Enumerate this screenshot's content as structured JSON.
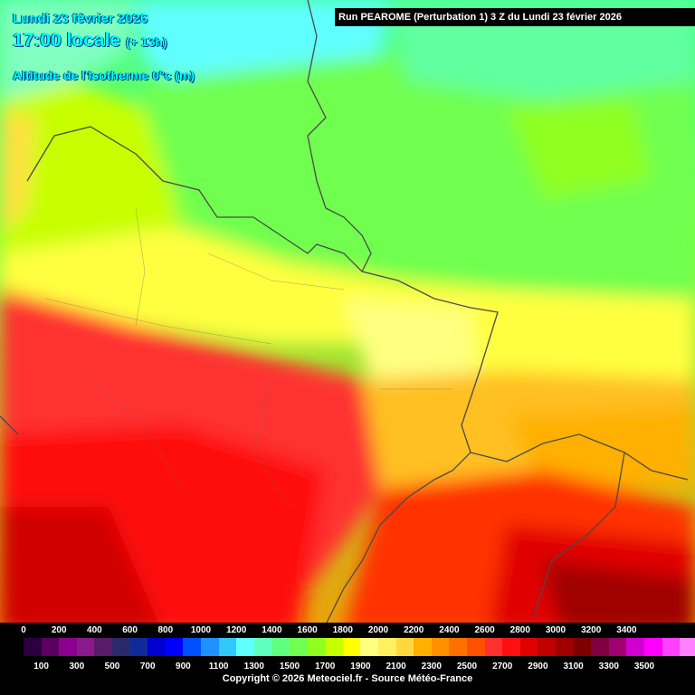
{
  "header": {
    "date": "Lundi 23 février 2026",
    "local_time": "17:00 locale",
    "offset": "(+ 13h)",
    "title": "Altitude de l'isotherme 0°c (m)",
    "run_info": "Run PEAROME (Perturbation 1) 3 Z du Lundi 23 février 2026"
  },
  "legend": {
    "top_labels": [
      "0",
      "200",
      "400",
      "600",
      "800",
      "1000",
      "1200",
      "1400",
      "1600",
      "1800",
      "2000",
      "2200",
      "2400",
      "2600",
      "2800",
      "3000",
      "3200",
      "3400"
    ],
    "bottom_labels": [
      "100",
      "300",
      "500",
      "700",
      "900",
      "1100",
      "1300",
      "1500",
      "1700",
      "1900",
      "2100",
      "2300",
      "2500",
      "2700",
      "2900",
      "3100",
      "3300",
      "3500"
    ],
    "colors": [
      "#2b0040",
      "#5a0060",
      "#8a0090",
      "#8a1a8a",
      "#5a1a6a",
      "#2a2a6a",
      "#102a9a",
      "#0000d0",
      "#0000ff",
      "#0050ff",
      "#1e90ff",
      "#30c8ff",
      "#60ffff",
      "#60ffc0",
      "#60ff80",
      "#70ff50",
      "#90ff20",
      "#c8ff00",
      "#ffff00",
      "#ffff80",
      "#fff060",
      "#ffd840",
      "#ffb000",
      "#ff9000",
      "#ff7000",
      "#ff5000",
      "#ff3030",
      "#ff1010",
      "#e00000",
      "#c00000",
      "#a00000",
      "#800000",
      "#800040",
      "#a00070",
      "#d000d0",
      "#ff00ff",
      "#ff40ff",
      "#ff80ff"
    ]
  },
  "copyright": "Copyright © 2026 Meteociel.fr - Source Météo-France"
}
